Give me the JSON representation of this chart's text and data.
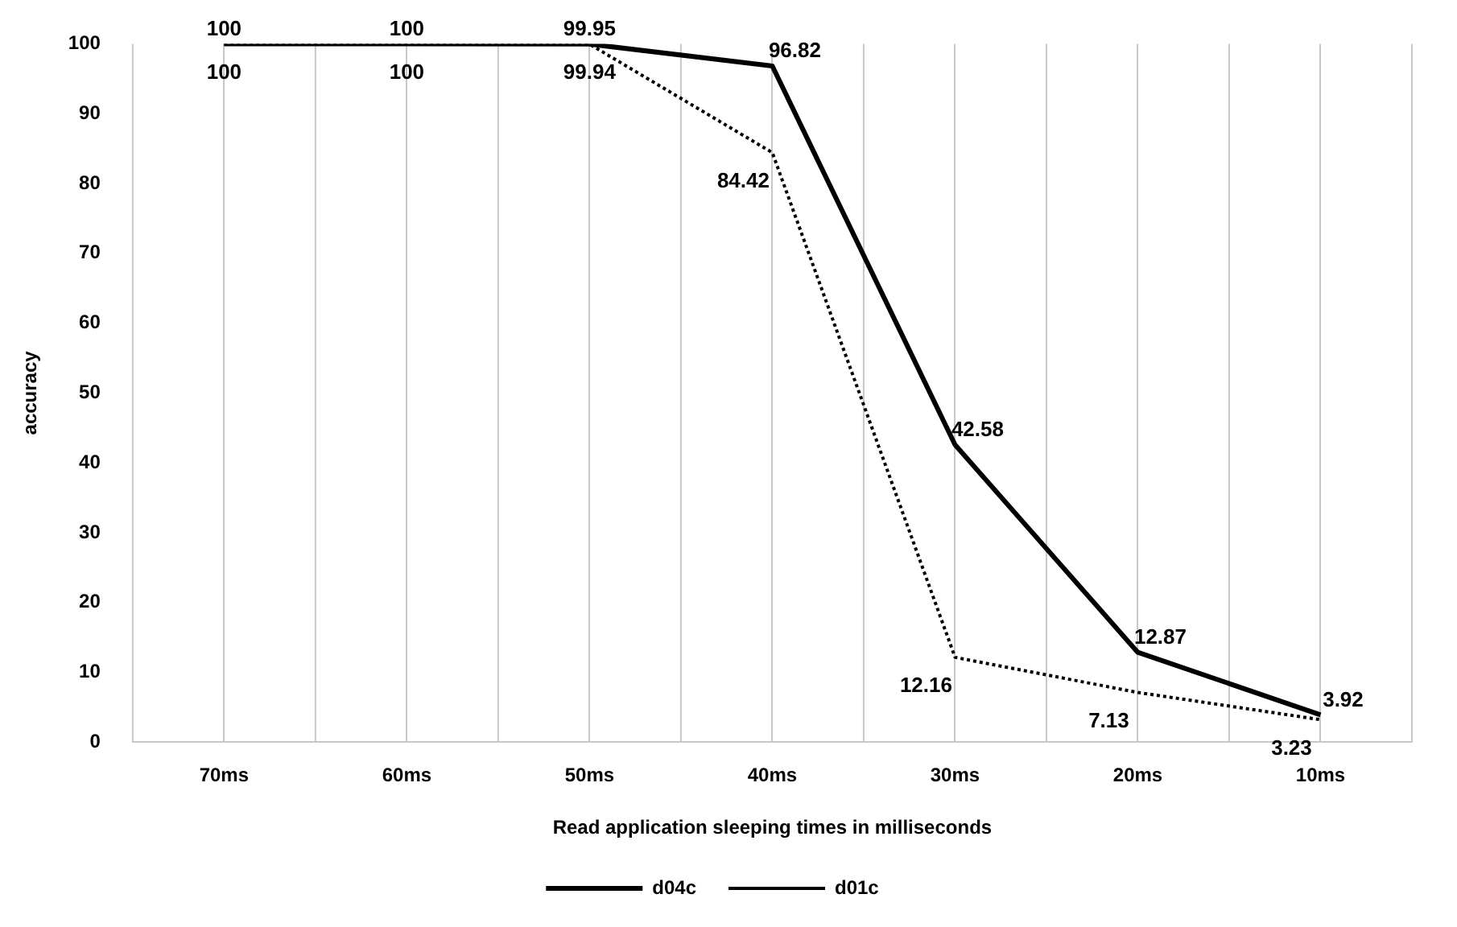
{
  "chart_data": {
    "type": "line",
    "xlabel": "Read application sleeping times in milliseconds",
    "ylabel": "accuracy",
    "categories": [
      "70ms",
      "60ms",
      "50ms",
      "40ms",
      "30ms",
      "20ms",
      "10ms"
    ],
    "series": [
      {
        "name": "d04c",
        "color": "#000000",
        "line_style": "solid",
        "values": [
          100,
          100,
          99.95,
          96.82,
          42.58,
          12.87,
          3.92
        ]
      },
      {
        "name": "d01c",
        "color": "#000000",
        "line_style": "dotted",
        "values": [
          100,
          100,
          99.94,
          84.42,
          12.16,
          7.13,
          3.23
        ]
      }
    ],
    "ylim": [
      0,
      100
    ],
    "yticks": [
      0,
      10,
      20,
      30,
      40,
      50,
      60,
      70,
      80,
      90,
      100
    ],
    "grid": "x",
    "legend": "bottom",
    "marker": "none",
    "data_labels": true
  }
}
